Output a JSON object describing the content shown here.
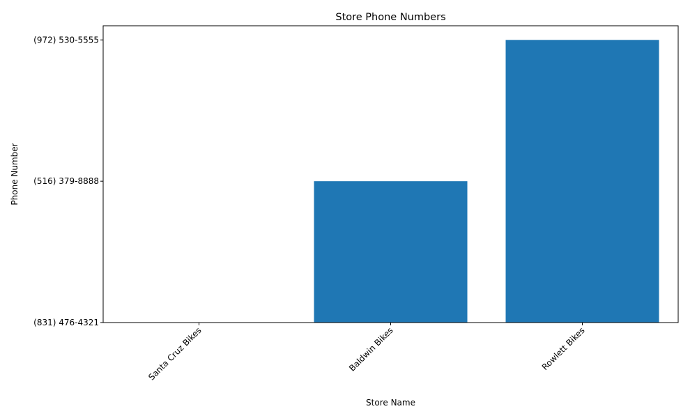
{
  "chart_data": {
    "type": "bar",
    "title": "Store Phone Numbers",
    "xlabel": "Store Name",
    "ylabel": "Phone Number",
    "categories": [
      "Santa Cruz Bikes",
      "Baldwin Bikes",
      "Rowlett Bikes"
    ],
    "y_tick_labels": [
      "(831) 476-4321",
      "(516) 379-8888",
      "(972) 530-5555"
    ],
    "values": [
      0,
      1,
      2
    ],
    "ylim": [
      0,
      2.1
    ],
    "grid": false,
    "legend": "none",
    "bar_color": "#1f77b4"
  }
}
